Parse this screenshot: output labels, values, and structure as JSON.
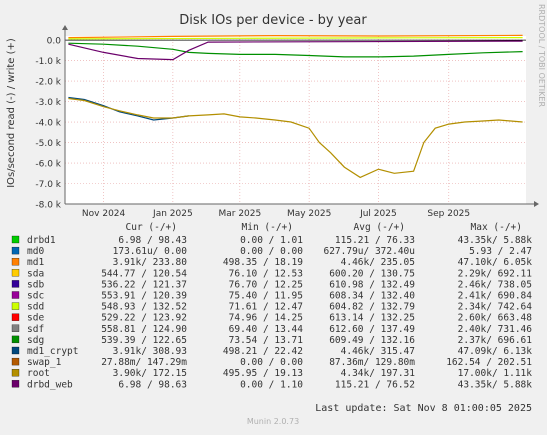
{
  "colors": {
    "background": "#f0f0f0",
    "plot_bg": "#ffffff",
    "grid": "#e6a0a0",
    "axis": "#666666",
    "text": "#333333",
    "watermark": "#b0b0b0"
  },
  "watermark": "RRDTOOL / TOBI OETIKER",
  "footer": {
    "last_update": "Last update:  Sat Nov  8 01:00:05 2025",
    "munin": "Munin 2.0.73"
  },
  "table_headers": {
    "cur": "Cur (-/+)",
    "min": "Min (-/+)",
    "avg": "Avg (-/+)",
    "max": "Max (-/+)"
  },
  "legend": [
    {
      "name": "drbd1",
      "color": "#00cc00",
      "cur": "6.98 /  98.43",
      "min": "0.00 /   1.01",
      "avg": "115.21 /  76.33",
      "max": "43.35k/   5.88k"
    },
    {
      "name": "md0",
      "color": "#0066b3",
      "cur": "173.61u/   0.00",
      "min": "0.00 /   0.00",
      "avg": "627.79u/ 372.40u",
      "max": "5.93 /   2.47"
    },
    {
      "name": "md1",
      "color": "#ff8000",
      "cur": "3.91k/ 233.80",
      "min": "498.35 /  18.19",
      "avg": "4.46k/ 235.05",
      "max": "47.10k/   6.05k"
    },
    {
      "name": "sda",
      "color": "#ffcc00",
      "cur": "544.77 / 120.54",
      "min": "76.10 /  12.53",
      "avg": "600.20 / 130.75",
      "max": "2.29k/ 692.11"
    },
    {
      "name": "sdb",
      "color": "#330099",
      "cur": "536.22 / 121.37",
      "min": "76.70 /  12.25",
      "avg": "610.98 / 132.49",
      "max": "2.46k/ 738.05"
    },
    {
      "name": "sdc",
      "color": "#990099",
      "cur": "553.91 / 120.39",
      "min": "75.40 /  11.95",
      "avg": "608.34 / 132.40",
      "max": "2.41k/ 690.84"
    },
    {
      "name": "sdd",
      "color": "#ccff00",
      "cur": "548.93 / 132.52",
      "min": "71.61 /  12.47",
      "avg": "604.82 / 132.79",
      "max": "2.34k/ 742.64"
    },
    {
      "name": "sde",
      "color": "#ff0000",
      "cur": "529.22 / 123.92",
      "min": "74.96 /  14.25",
      "avg": "613.14 / 132.25",
      "max": "2.60k/ 663.48"
    },
    {
      "name": "sdf",
      "color": "#808080",
      "cur": "558.81 / 124.90",
      "min": "69.40 /  13.44",
      "avg": "612.60 / 137.49",
      "max": "2.40k/ 731.46"
    },
    {
      "name": "sdg",
      "color": "#008f00",
      "cur": "539.39 / 122.65",
      "min": "73.54 /  13.71",
      "avg": "609.49 / 132.16",
      "max": "2.37k/ 696.61"
    },
    {
      "name": "md1_crypt",
      "color": "#00487d",
      "cur": "3.91k/ 308.93",
      "min": "498.21 /  22.42",
      "avg": "4.46k/ 315.47",
      "max": "47.09k/   6.13k"
    },
    {
      "name": "swap_1",
      "color": "#b35a00",
      "cur": "27.88m/ 147.29m",
      "min": "0.00 /   0.00",
      "avg": "87.36m/ 129.80m",
      "max": "162.54 / 202.51"
    },
    {
      "name": "root",
      "color": "#b38f00",
      "cur": "3.90k/ 172.15",
      "min": "495.95 /  19.13",
      "avg": "4.34k/ 197.31",
      "max": "17.00k/   1.11k"
    },
    {
      "name": "drbd_web",
      "color": "#6b006b",
      "cur": "6.98 /  98.63",
      "min": "0.00 /   1.10",
      "avg": "115.21 /  76.52",
      "max": "43.35k/   5.88k"
    }
  ],
  "chart_data": {
    "type": "line",
    "title": "Disk IOs per device - by year",
    "ylabel": "IOs/second read (-) / write (+)",
    "xlabel": "",
    "ylim": [
      -8000,
      200
    ],
    "yticks": [
      0,
      -1000,
      -2000,
      -3000,
      -4000,
      -5000,
      -6000,
      -7000,
      -8000
    ],
    "ytick_labels": [
      "0.0",
      "-1.0 k",
      "-2.0 k",
      "-3.0 k",
      "-4.0 k",
      "-5.0 k",
      "-6.0 k",
      "-7.0 k",
      "-8.0 k"
    ],
    "xlim": [
      "2024-09-28",
      "2025-11-08"
    ],
    "xticks": [
      "2024-11-01",
      "2025-01-01",
      "2025-03-01",
      "2025-05-01",
      "2025-07-01",
      "2025-09-01"
    ],
    "xtick_labels": [
      "Nov 2024",
      "Jan 2025",
      "Mar 2025",
      "May 2025",
      "Jul 2025",
      "Sep 2025"
    ],
    "grid": true,
    "series": [
      {
        "name": "md1_crypt",
        "color": "#00487d",
        "read": [
          [
            "2024-10-01",
            -2800
          ],
          [
            "2024-10-15",
            -2900
          ],
          [
            "2024-11-01",
            -3200
          ],
          [
            "2024-11-15",
            -3500
          ],
          [
            "2024-12-01",
            -3700
          ],
          [
            "2024-12-15",
            -3900
          ],
          [
            "2025-01-01",
            -3800
          ],
          [
            "2025-01-15",
            -3700
          ]
        ]
      },
      {
        "name": "root",
        "color": "#b38f00",
        "read": [
          [
            "2024-10-01",
            -2850
          ],
          [
            "2024-10-15",
            -2950
          ],
          [
            "2024-11-01",
            -3250
          ],
          [
            "2024-11-15",
            -3450
          ],
          [
            "2024-12-01",
            -3650
          ],
          [
            "2024-12-15",
            -3800
          ],
          [
            "2025-01-01",
            -3800
          ],
          [
            "2025-01-15",
            -3700
          ],
          [
            "2025-02-01",
            -3650
          ],
          [
            "2025-02-15",
            -3600
          ],
          [
            "2025-03-01",
            -3750
          ],
          [
            "2025-03-15",
            -3800
          ],
          [
            "2025-04-01",
            -3900
          ],
          [
            "2025-04-15",
            -4000
          ],
          [
            "2025-05-01",
            -4300
          ],
          [
            "2025-05-10",
            -5000
          ],
          [
            "2025-05-20",
            -5500
          ],
          [
            "2025-06-01",
            -6200
          ],
          [
            "2025-06-15",
            -6700
          ],
          [
            "2025-07-01",
            -6300
          ],
          [
            "2025-07-15",
            -6500
          ],
          [
            "2025-08-01",
            -6400
          ],
          [
            "2025-08-10",
            -5000
          ],
          [
            "2025-08-20",
            -4300
          ],
          [
            "2025-09-01",
            -4100
          ],
          [
            "2025-09-15",
            -4000
          ],
          [
            "2025-10-01",
            -3950
          ],
          [
            "2025-10-15",
            -3900
          ],
          [
            "2025-11-05",
            -4000
          ]
        ]
      },
      {
        "name": "sdg",
        "color": "#008f00",
        "read": [
          [
            "2024-10-01",
            -150
          ],
          [
            "2024-11-01",
            -200
          ],
          [
            "2024-12-01",
            -300
          ],
          [
            "2025-01-01",
            -450
          ],
          [
            "2025-01-15",
            -600
          ],
          [
            "2025-02-01",
            -650
          ],
          [
            "2025-03-01",
            -700
          ],
          [
            "2025-04-01",
            -700
          ],
          [
            "2025-05-01",
            -750
          ],
          [
            "2025-06-01",
            -820
          ],
          [
            "2025-07-01",
            -820
          ],
          [
            "2025-08-01",
            -780
          ],
          [
            "2025-09-01",
            -700
          ],
          [
            "2025-10-01",
            -620
          ],
          [
            "2025-11-05",
            -560
          ]
        ]
      },
      {
        "name": "drbd_web",
        "color": "#6b006b",
        "read": [
          [
            "2024-10-01",
            -200
          ],
          [
            "2024-11-01",
            -600
          ],
          [
            "2024-12-01",
            -900
          ],
          [
            "2025-01-01",
            -950
          ],
          [
            "2025-01-15",
            -500
          ],
          [
            "2025-02-01",
            -100
          ],
          [
            "2025-11-05",
            -50
          ]
        ]
      },
      {
        "name": "md1",
        "color": "#ff8000",
        "write": [
          [
            "2024-10-01",
            120
          ],
          [
            "2025-01-01",
            180
          ],
          [
            "2025-04-01",
            220
          ],
          [
            "2025-07-01",
            200
          ],
          [
            "2025-11-05",
            230
          ]
        ]
      },
      {
        "name": "sdd",
        "color": "#ccff00",
        "write": [
          [
            "2024-10-01",
            60
          ],
          [
            "2025-03-01",
            90
          ],
          [
            "2025-08-01",
            110
          ],
          [
            "2025-11-05",
            120
          ]
        ]
      }
    ]
  }
}
